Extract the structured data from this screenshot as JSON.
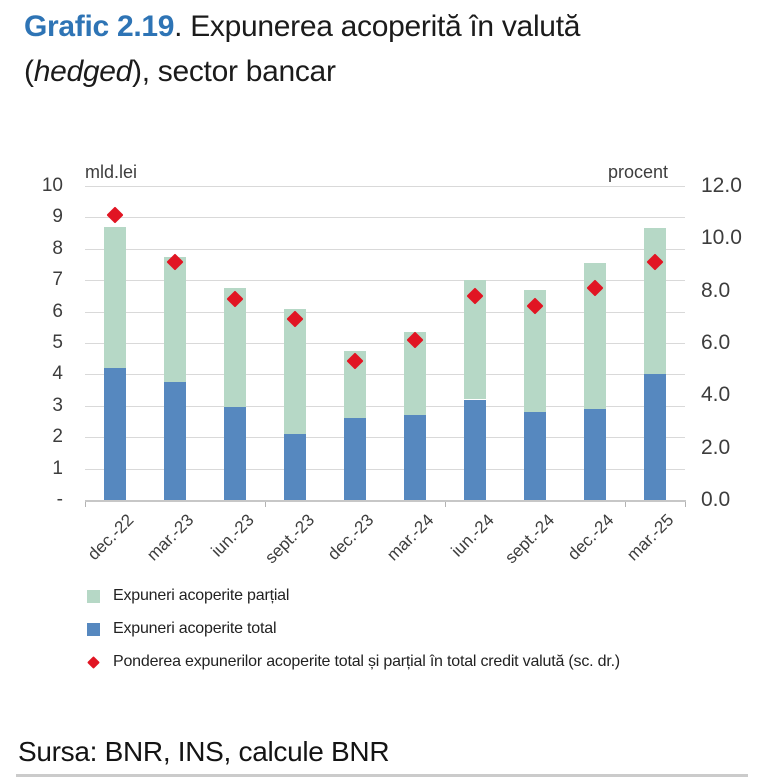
{
  "title": {
    "graf_label": "Grafic 2.19",
    "line1_rest": ". Expunerea acoperită în valută",
    "line2_open": "(",
    "line2_italic": "hedged",
    "line2_rest": "), sector bancar"
  },
  "source_note": "Sursa: BNR, INS, calcule BNR",
  "colors": {
    "title_blue": "#2e74b5",
    "bar_partial_green": "#b6d8c6",
    "bar_total_blue": "#5688bf",
    "marker_red": "#e11523",
    "gridline": "#d9d9d9",
    "axis_line": "#c7c7c7",
    "axis_text": "#3d3d3d"
  },
  "legend": [
    {
      "marker": "square",
      "color_key": "bar_partial_green",
      "label": "Expuneri acoperite parțial"
    },
    {
      "marker": "square",
      "color_key": "bar_total_blue",
      "label": "Expuneri acoperite total"
    },
    {
      "marker": "diamond",
      "color_key": "marker_red",
      "label": "Ponderea expunerilor acoperite total și parțial în total credit valută (sc. dr.)"
    }
  ],
  "chart_data": {
    "type": "bar",
    "stacked": true,
    "grid": true,
    "legend_position": "bottom-left",
    "categories": [
      "dec.-22",
      "mar.-23",
      "iun.-23",
      "sept.-23",
      "dec.-23",
      "mar.-24",
      "iun.-24",
      "sept.-24",
      "dec.-24",
      "mar.-25"
    ],
    "series": [
      {
        "name": "Expuneri acoperite total",
        "slug": "total",
        "type": "bar",
        "axis": "left",
        "color_key": "bar_total_blue",
        "values": [
          4.2,
          3.75,
          2.95,
          2.1,
          2.6,
          2.7,
          3.2,
          2.8,
          2.9,
          4.0
        ]
      },
      {
        "name": "Expuneri acoperite parțial",
        "slug": "partial",
        "type": "bar",
        "axis": "left",
        "color_key": "bar_partial_green",
        "values": [
          4.5,
          4.0,
          3.8,
          4.0,
          2.15,
          2.65,
          3.8,
          3.9,
          4.65,
          4.65
        ]
      },
      {
        "name": "Ponderea expunerilor acoperite total și parțial în total credit valută (sc. dr.)",
        "slug": "pondere",
        "type": "scatter",
        "marker": "diamond",
        "axis": "right",
        "color_key": "marker_red",
        "values": [
          10.9,
          9.1,
          7.7,
          6.9,
          5.3,
          6.1,
          7.8,
          7.4,
          8.1,
          9.1
        ]
      }
    ],
    "stacked_totals": [
      8.7,
      7.75,
      6.75,
      6.1,
      4.75,
      5.35,
      7.0,
      6.7,
      7.55,
      8.65
    ],
    "left_axis": {
      "title": "mld.lei",
      "min": 0,
      "max": 10,
      "tick_labels": [
        "10",
        "9",
        "8",
        "7",
        "6",
        "5",
        "4",
        "3",
        "2",
        "1",
        "-"
      ]
    },
    "right_axis": {
      "title": "procent",
      "min": 0,
      "max": 12,
      "tick_labels": [
        "12.0",
        "10.0",
        "8.0",
        "6.0",
        "4.0",
        "2.0",
        "0.0"
      ]
    }
  }
}
